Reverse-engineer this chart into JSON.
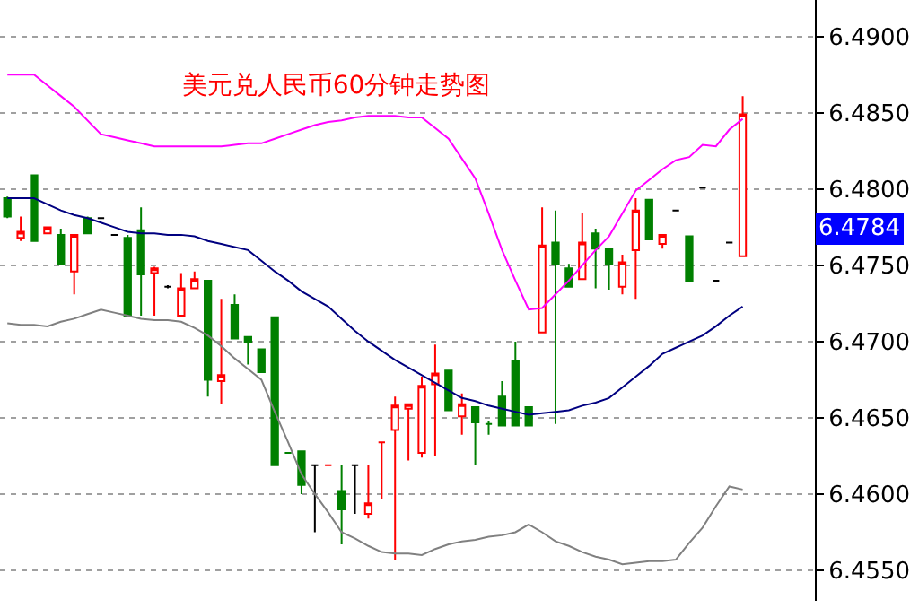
{
  "chart_data": {
    "type": "candlestick",
    "title": "美元兑人民币60分钟走势图",
    "categories": [
      null,
      null,
      null,
      null,
      null,
      null,
      null,
      null,
      null,
      null,
      null,
      null,
      null,
      null,
      null,
      null,
      null,
      null,
      null,
      null,
      null,
      null,
      null,
      null,
      null,
      null,
      null,
      null,
      null,
      null,
      null,
      null,
      null,
      null,
      null,
      null,
      null,
      null,
      null,
      null,
      null,
      null,
      null,
      null,
      null,
      null,
      null,
      null,
      null,
      null,
      null,
      null,
      null,
      null,
      null,
      null
    ],
    "ohlc": [
      [
        6.4794,
        6.4795,
        6.4781,
        6.4782
      ],
      [
        6.4768,
        6.4782,
        6.4766,
        6.4772
      ],
      [
        6.4809,
        6.4809,
        6.4766,
        6.4766
      ],
      [
        6.4771,
        6.4775,
        6.4771,
        6.4775
      ],
      [
        6.477,
        6.4774,
        6.4751,
        6.4751
      ],
      [
        6.4746,
        6.477,
        6.4731,
        6.477
      ],
      [
        6.4781,
        6.4782,
        6.4771,
        6.4771
      ],
      [
        6.4781,
        6.4781,
        6.4781,
        6.4781
      ],
      [
        6.477,
        6.477,
        6.477,
        6.477
      ],
      [
        6.4768,
        6.477,
        6.4717,
        6.4717
      ],
      [
        6.4773,
        6.4788,
        6.4717,
        6.4744
      ],
      [
        6.4745,
        6.4749,
        6.4717,
        6.4748
      ],
      [
        6.4736,
        6.4737,
        6.4735,
        6.4736
      ],
      [
        6.4717,
        6.4745,
        6.4717,
        6.4735
      ],
      [
        6.4735,
        6.4746,
        6.4735,
        6.4741
      ],
      [
        6.474,
        6.474,
        6.4664,
        6.4675
      ],
      [
        6.4674,
        6.4728,
        6.4659,
        6.4678
      ],
      [
        6.4724,
        6.4731,
        6.4702,
        6.4702
      ],
      [
        6.4703,
        6.4703,
        6.4685,
        6.47
      ],
      [
        6.4695,
        6.4695,
        6.468,
        6.468
      ],
      [
        6.4716,
        6.4716,
        6.4619,
        6.4619
      ],
      [
        6.4627,
        6.4627,
        6.4627,
        6.4627
      ],
      [
        6.4628,
        6.4628,
        6.46,
        6.4606
      ],
      [
        6.4619,
        6.4619,
        6.4575,
        6.4619
      ],
      [
        6.4619,
        6.4619,
        6.4619,
        6.4619
      ],
      [
        6.4602,
        6.4619,
        6.4567,
        6.459
      ],
      [
        6.4619,
        6.4619,
        6.4587,
        6.4619
      ],
      [
        6.4587,
        6.4619,
        6.4584,
        6.4594
      ],
      [
        6.4634,
        6.4634,
        6.4597,
        6.4634
      ],
      [
        6.4642,
        6.4664,
        6.4557,
        6.4658
      ],
      [
        6.4656,
        6.4659,
        6.4622,
        6.4659
      ],
      [
        6.4627,
        6.4677,
        6.4624,
        6.4671
      ],
      [
        6.4672,
        6.4698,
        6.4625,
        6.4679
      ],
      [
        6.4681,
        6.4681,
        6.4655,
        6.4655
      ],
      [
        6.4651,
        6.4666,
        6.4639,
        6.4659
      ],
      [
        6.4657,
        6.4657,
        6.4619,
        6.4647
      ],
      [
        6.4646,
        6.4648,
        6.4639,
        6.4646
      ],
      [
        6.4664,
        6.4674,
        6.4645,
        6.4645
      ],
      [
        6.4687,
        6.47,
        6.4645,
        6.4645
      ],
      [
        6.4657,
        6.4657,
        6.4645,
        6.4645
      ],
      [
        6.4706,
        6.4788,
        6.4706,
        6.4763
      ],
      [
        6.4765,
        6.4786,
        6.4646,
        6.4751
      ],
      [
        6.4748,
        6.4751,
        6.4736,
        6.4736
      ],
      [
        6.4741,
        6.4784,
        6.4741,
        6.4765
      ],
      [
        6.4771,
        6.4774,
        6.4735,
        6.4761
      ],
      [
        6.4761,
        6.4761,
        6.4734,
        6.4751
      ],
      [
        6.4736,
        6.4757,
        6.4731,
        6.4752
      ],
      [
        6.476,
        6.4794,
        6.4728,
        6.4786
      ],
      [
        6.4793,
        6.4793,
        6.4767,
        6.4767
      ],
      [
        6.4764,
        6.477,
        6.4761,
        6.477
      ],
      [
        6.4786,
        6.4786,
        6.4786,
        6.4786
      ],
      [
        6.4769,
        6.4769,
        6.474,
        6.474
      ],
      [
        6.4801,
        6.4801,
        6.4801,
        6.4801
      ],
      [
        6.474,
        6.474,
        6.474,
        6.474
      ],
      [
        6.4765,
        6.4765,
        6.4765,
        6.4765
      ],
      [
        6.4756,
        6.4861,
        6.4756,
        6.4849
      ]
    ],
    "colors": [
      "#008000",
      "#ff0000",
      "#008000",
      "#ff0000",
      "#008000",
      "#ff0000",
      "#008000",
      "#000000",
      "#000000",
      "#008000",
      "#008000",
      "#ff0000",
      "#000000",
      "#ff0000",
      "#ff0000",
      "#008000",
      "#ff0000",
      "#008000",
      "#008000",
      "#008000",
      "#008000",
      "#008000",
      "#008000",
      "#000000",
      "#ff0000",
      "#008000",
      "#000000",
      "#ff0000",
      "#ff0000",
      "#ff0000",
      "#ff0000",
      "#ff0000",
      "#ff0000",
      "#008000",
      "#ff0000",
      "#008000",
      "#008000",
      "#008000",
      "#008000",
      "#008000",
      "#ff0000",
      "#008000",
      "#008000",
      "#ff0000",
      "#008000",
      "#008000",
      "#ff0000",
      "#ff0000",
      "#008000",
      "#ff0000",
      "#000000",
      "#008000",
      "#000000",
      "#000000",
      "#000000",
      "#ff0000"
    ],
    "series": [
      {
        "type": "line",
        "color": "#ff00ff",
        "values": [
          6.4875,
          6.4875,
          6.4875,
          6.4868,
          6.4861,
          6.4854,
          6.4845,
          6.4836,
          6.4834,
          6.4832,
          6.483,
          6.4828,
          6.4828,
          6.4828,
          6.4828,
          6.4828,
          6.4828,
          6.4829,
          6.483,
          6.483,
          6.4833,
          6.4836,
          6.4839,
          6.4842,
          6.4844,
          6.4845,
          6.4847,
          6.4848,
          6.4848,
          6.4848,
          6.4847,
          6.4847,
          6.484,
          6.4833,
          6.482,
          6.4807,
          6.4784,
          6.476,
          6.474,
          6.4721,
          6.4722,
          6.4731,
          6.474,
          6.475,
          6.476,
          6.4769,
          6.4784,
          6.4799,
          6.4806,
          6.4813,
          6.4819,
          6.4821,
          6.4829,
          6.4828,
          6.4839,
          6.4846
        ]
      },
      {
        "type": "line",
        "color": "#000080",
        "values": [
          6.4794,
          6.4794,
          6.4794,
          6.479,
          6.4786,
          6.4783,
          6.4781,
          6.4778,
          6.4775,
          6.4772,
          6.4771,
          6.4771,
          6.477,
          6.477,
          6.4769,
          6.4766,
          6.4764,
          6.4762,
          6.476,
          6.4753,
          6.4746,
          6.474,
          6.4733,
          6.4728,
          6.4723,
          6.4715,
          6.4707,
          6.47,
          6.4694,
          6.4688,
          6.4683,
          6.4678,
          6.4673,
          6.4668,
          6.4663,
          6.4661,
          6.4658,
          6.4656,
          6.4654,
          6.4652,
          6.4653,
          6.4654,
          6.4655,
          6.4658,
          6.466,
          6.4663,
          6.467,
          6.4677,
          6.4684,
          6.4692,
          6.4696,
          6.47,
          6.4704,
          6.471,
          6.4717,
          6.4723
        ]
      },
      {
        "type": "line",
        "color": "#808080",
        "values": [
          6.4712,
          6.4711,
          6.4711,
          6.471,
          6.4713,
          6.4715,
          6.4718,
          6.4721,
          6.4719,
          6.4717,
          6.4715,
          6.4714,
          6.4714,
          6.4713,
          6.4709,
          6.4704,
          6.4697,
          6.4689,
          6.4682,
          6.4675,
          6.4654,
          6.4634,
          6.4613,
          6.46,
          6.4588,
          6.4575,
          6.4571,
          6.4566,
          6.4562,
          6.4561,
          6.4561,
          6.456,
          6.4564,
          6.4567,
          6.4569,
          6.457,
          6.4572,
          6.4573,
          6.4575,
          6.458,
          6.4575,
          6.4569,
          6.4566,
          6.4562,
          6.4559,
          6.4557,
          6.4554,
          6.4555,
          6.4556,
          6.4556,
          6.4557,
          6.4568,
          6.4578,
          6.4592,
          6.4605,
          6.4603
        ]
      }
    ],
    "ylim": [
      6.453,
      6.4924
    ],
    "yticks": [
      {
        "value": 6.455,
        "label": "6.4550"
      },
      {
        "value": 6.46,
        "label": "6.4600"
      },
      {
        "value": 6.465,
        "label": "6.4650"
      },
      {
        "value": 6.47,
        "label": "6.4700"
      },
      {
        "value": 6.475,
        "label": "6.4750"
      },
      {
        "value": 6.48,
        "label": "6.4800"
      },
      {
        "value": 6.485,
        "label": "6.4850"
      },
      {
        "value": 6.49,
        "label": "6.4900"
      }
    ],
    "annotations": [
      "6.4784"
    ],
    "grid": "y",
    "tick_labels": "y"
  }
}
